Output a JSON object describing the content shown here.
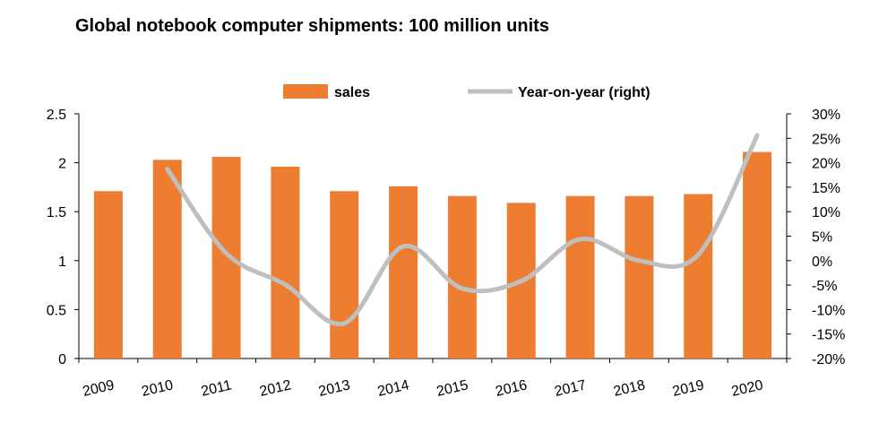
{
  "chart_data": {
    "type": "bar",
    "title": "Global notebook computer shipments: 100 million units",
    "categories": [
      "2009",
      "2010",
      "2011",
      "2012",
      "2013",
      "2014",
      "2015",
      "2016",
      "2017",
      "2018",
      "2019",
      "2020"
    ],
    "series": [
      {
        "name": "sales",
        "type": "bar",
        "axis": "left",
        "color": "#ED7D31",
        "values": [
          1.71,
          2.03,
          2.06,
          1.96,
          1.71,
          1.76,
          1.66,
          1.59,
          1.66,
          1.66,
          1.68,
          2.11
        ]
      },
      {
        "name": "Year-on-year (right)",
        "type": "line",
        "axis": "right",
        "color": "#BFBFBF",
        "values": [
          null,
          18.7,
          1.5,
          -4.9,
          -12.8,
          2.9,
          -5.7,
          -4.2,
          4.4,
          0.0,
          1.2,
          25.6
        ]
      }
    ],
    "y_left": {
      "min": 0,
      "max": 2.5,
      "ticks": [
        0,
        0.5,
        1,
        1.5,
        2,
        2.5
      ],
      "tick_labels": [
        "0",
        "0.5",
        "1",
        "1.5",
        "2",
        "2.5"
      ]
    },
    "y_right": {
      "min": -20,
      "max": 30,
      "ticks": [
        -20,
        -15,
        -10,
        -5,
        0,
        5,
        10,
        15,
        20,
        25,
        30
      ],
      "tick_labels": [
        "-20%",
        "-15%",
        "-10%",
        "-5%",
        "0%",
        "5%",
        "10%",
        "15%",
        "20%",
        "25%",
        "30%"
      ]
    },
    "legend_position": "top-center",
    "grid": false
  }
}
